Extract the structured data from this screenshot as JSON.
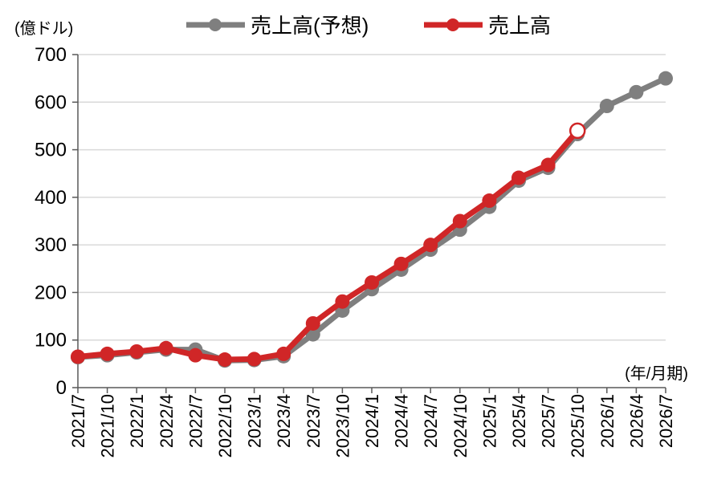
{
  "chart_data": {
    "type": "line",
    "ylabel": "(億ドル)",
    "xlabel": "(年/月期)",
    "ylim": [
      0,
      700
    ],
    "yticks": [
      "0",
      "100",
      "200",
      "300",
      "400",
      "500",
      "600",
      "700"
    ],
    "yticks_values": [
      0,
      100,
      200,
      300,
      400,
      500,
      600,
      700
    ],
    "categories": [
      "2021/7",
      "2021/10",
      "2022/1",
      "2022/4",
      "2022/7",
      "2022/10",
      "2023/1",
      "2023/4",
      "2023/7",
      "2023/10",
      "2024/1",
      "2024/4",
      "2024/7",
      "2024/10",
      "2025/1",
      "2025/4",
      "2025/7",
      "2025/10",
      "2026/1",
      "2026/4",
      "2026/7"
    ],
    "grid": true,
    "legend_position": "top",
    "series": [
      {
        "name": "売上高(予想)",
        "color": "#7f7f7f",
        "values": [
          64,
          68,
          74,
          80,
          80,
          57,
          58,
          66,
          112,
          162,
          207,
          248,
          290,
          332,
          380,
          435,
          462,
          533,
          592,
          621,
          650
        ]
      },
      {
        "name": "売上高",
        "color": "#d02627",
        "values": [
          65,
          71,
          76,
          83,
          68,
          59,
          60,
          71,
          135,
          181,
          221,
          260,
          300,
          350,
          393,
          441,
          468,
          540,
          null,
          null,
          null
        ],
        "hollow_last_point": true
      }
    ]
  }
}
